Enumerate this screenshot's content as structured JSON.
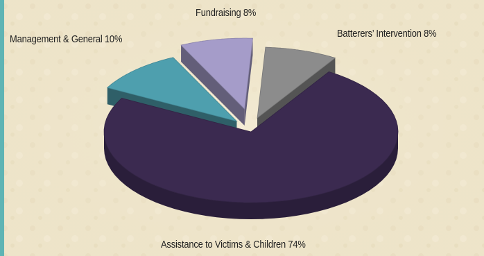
{
  "chart_data": {
    "type": "pie",
    "title": "",
    "three_d": true,
    "exploded": true,
    "slices": [
      {
        "label": "Assistance to Victims & Children 74%",
        "value": 74,
        "color": "#3b2a50"
      },
      {
        "label": "Management & General 10%",
        "value": 10,
        "color": "#4e9fae"
      },
      {
        "label": "Fundraising 8%",
        "value": 8,
        "color": "#a59cc9"
      },
      {
        "label": "Batterers’ Intervention 8%",
        "value": 8,
        "color": "#8c8c8c"
      }
    ],
    "legend": "none"
  }
}
